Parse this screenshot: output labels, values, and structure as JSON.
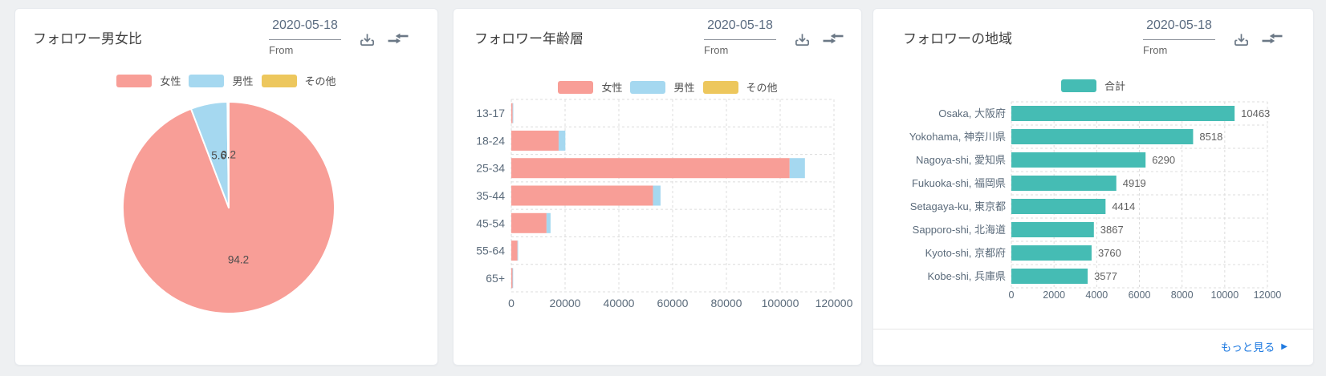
{
  "page": {
    "background": "#eef0f2"
  },
  "series_colors": {
    "female": "#F89E97",
    "male": "#A5D8F0",
    "other": "#EDC75D",
    "total": "#45BCB4"
  },
  "cards": [
    {
      "title": "フォロワー男女比",
      "date_value": "2020-05-18",
      "date_label": "From",
      "legend": [
        {
          "label": "女性",
          "color": "#F89E97"
        },
        {
          "label": "男性",
          "color": "#A5D8F0"
        },
        {
          "label": "その他",
          "color": "#EDC75D"
        }
      ],
      "chart_data": {
        "type": "pie",
        "series": [
          {
            "name": "女性",
            "value": 94.2,
            "color": "#F89E97"
          },
          {
            "name": "男性",
            "value": 5.6,
            "color": "#A5D8F0"
          },
          {
            "name": "その他",
            "value": 0.2,
            "color": "#EDC75D"
          }
        ],
        "unit": "percent",
        "start_angle": 0,
        "label_position": "inside"
      }
    },
    {
      "title": "フォロワー年齢層",
      "date_value": "2020-05-18",
      "date_label": "From",
      "legend": [
        {
          "label": "女性",
          "color": "#F89E97"
        },
        {
          "label": "男性",
          "color": "#A5D8F0"
        },
        {
          "label": "その他",
          "color": "#EDC75D"
        }
      ],
      "chart_data": {
        "type": "bar",
        "orientation": "horizontal",
        "stacked": true,
        "categories": [
          "13-17",
          "18-24",
          "25-34",
          "35-44",
          "45-54",
          "55-64",
          "65+"
        ],
        "series": [
          {
            "name": "女性",
            "color": "#F89E97",
            "values": [
              500,
              17600,
              103500,
              52700,
              13100,
              2300,
              450
            ]
          },
          {
            "name": "男性",
            "color": "#A5D8F0",
            "values": [
              100,
              2500,
              5700,
              2800,
              1500,
              100,
              50
            ]
          },
          {
            "name": "その他",
            "color": "#EDC75D",
            "values": [
              0,
              0,
              0,
              0,
              0,
              0,
              0
            ]
          }
        ],
        "xlim": [
          0,
          120000
        ],
        "xticks": [
          0,
          20000,
          40000,
          60000,
          80000,
          100000,
          120000
        ],
        "grid": "dashed"
      }
    },
    {
      "title": "フォロワーの地域",
      "date_value": "2020-05-18",
      "date_label": "From",
      "legend": [
        {
          "label": "合計",
          "color": "#45BCB4"
        }
      ],
      "chart_data": {
        "type": "bar",
        "orientation": "horizontal",
        "stacked": false,
        "categories": [
          "Osaka, 大阪府",
          "Yokohama, 神奈川県",
          "Nagoya-shi, 愛知県",
          "Fukuoka-shi, 福岡県",
          "Setagaya-ku, 東京都",
          "Sapporo-shi, 北海道",
          "Kyoto-shi, 京都府",
          "Kobe-shi, 兵庫県"
        ],
        "series": [
          {
            "name": "合計",
            "color": "#45BCB4",
            "values": [
              10463,
              8518,
              6290,
              4919,
              4414,
              3867,
              3760,
              3577
            ]
          }
        ],
        "value_labels": [
          10463,
          8518,
          6290,
          4919,
          4414,
          3867,
          3760,
          3577
        ],
        "xlim": [
          0,
          12000
        ],
        "xticks": [
          0,
          2000,
          4000,
          6000,
          8000,
          10000,
          12000
        ],
        "grid": "dashed"
      },
      "footer": {
        "more_label": "もっと見る",
        "arrow": "▶"
      }
    }
  ]
}
